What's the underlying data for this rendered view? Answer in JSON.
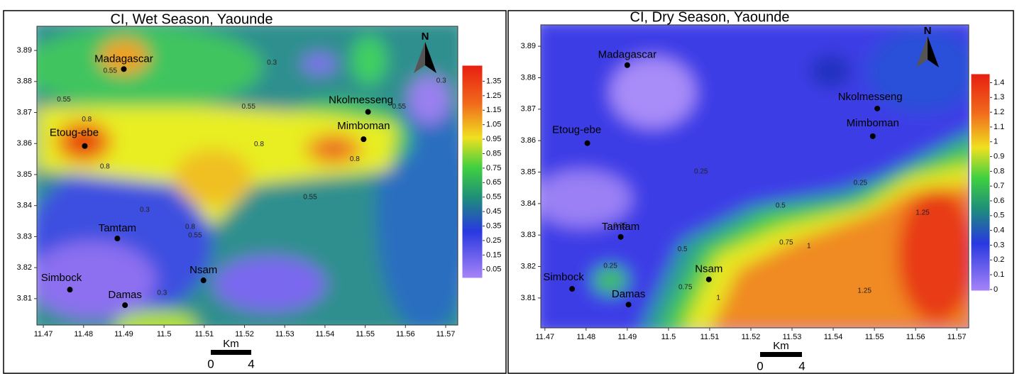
{
  "panels": [
    {
      "title": "CI, Wet Season, Yaounde",
      "xlim": [
        11.4684,
        11.573
      ],
      "ylim": [
        3.8015,
        3.8978
      ],
      "xticks": [
        11.47,
        11.48,
        11.49,
        11.5,
        11.51,
        11.52,
        11.53,
        11.54,
        11.55,
        11.56,
        11.57
      ],
      "yticks": [
        3.81,
        3.82,
        3.83,
        3.84,
        3.85,
        3.86,
        3.87,
        3.88,
        3.89
      ],
      "north": "N",
      "colorbar_lim": [
        -0.01,
        1.46
      ],
      "colorbar_ticks": [
        1.35,
        1.25,
        1.15,
        1.05,
        0.95,
        0.85,
        0.75,
        0.65,
        0.55,
        0.45,
        0.35,
        0.25,
        0.15,
        0.05
      ],
      "stations": [
        {
          "name": "Madagascar",
          "lon": 11.49,
          "lat": 3.884
        },
        {
          "name": "Nkolmesseng",
          "lon": 11.5507,
          "lat": 3.8702
        },
        {
          "name": "Mimboman",
          "lon": 11.5496,
          "lat": 3.8614
        },
        {
          "name": "Etoug-ebe",
          "lon": 11.4803,
          "lat": 3.8592
        },
        {
          "name": "Tamtam",
          "lon": 11.4884,
          "lat": 3.8294
        },
        {
          "name": "Nsam",
          "lon": 11.5098,
          "lat": 3.8159
        },
        {
          "name": "Simbock",
          "lon": 11.4766,
          "lat": 3.8129
        },
        {
          "name": "Damas",
          "lon": 11.4903,
          "lat": 3.8079
        }
      ],
      "contour_labels": [
        {
          "value": 0.55,
          "lon": 11.4866,
          "lat": 3.8834
        },
        {
          "value": 0.55,
          "lon": 11.4751,
          "lat": 3.8742
        },
        {
          "value": 0.55,
          "lon": 11.521,
          "lat": 3.8719
        },
        {
          "value": 0.8,
          "lon": 11.4808,
          "lat": 3.8678
        },
        {
          "value": 0.8,
          "lon": 11.5236,
          "lat": 3.8598
        },
        {
          "value": 0.8,
          "lon": 11.4853,
          "lat": 3.8525
        },
        {
          "value": 0.8,
          "lon": 11.5474,
          "lat": 3.855
        },
        {
          "value": 0.3,
          "lon": 11.5268,
          "lat": 3.8861
        },
        {
          "value": 0.3,
          "lon": 11.5689,
          "lat": 3.8802
        },
        {
          "value": 0.55,
          "lon": 11.5584,
          "lat": 3.8719
        },
        {
          "value": 0.55,
          "lon": 11.5363,
          "lat": 3.8427
        },
        {
          "value": 0.3,
          "lon": 11.4952,
          "lat": 3.8386
        },
        {
          "value": 0.8,
          "lon": 11.5065,
          "lat": 3.8331
        },
        {
          "value": 0.55,
          "lon": 11.5077,
          "lat": 3.8303
        },
        {
          "value": 0.3,
          "lon": 11.4995,
          "lat": 3.8118
        }
      ],
      "scale": {
        "unit": "Km",
        "ticks": [
          0,
          4
        ]
      }
    },
    {
      "title": "CI, Dry Season, Yaounde",
      "xlim": [
        11.469,
        11.5729
      ],
      "ylim": [
        3.8005,
        3.8968
      ],
      "xticks": [
        11.47,
        11.48,
        11.49,
        11.5,
        11.51,
        11.52,
        11.53,
        11.54,
        11.55,
        11.56,
        11.57
      ],
      "yticks": [
        3.81,
        3.82,
        3.83,
        3.84,
        3.85,
        3.86,
        3.87,
        3.88,
        3.89
      ],
      "north": "N",
      "colorbar_lim": [
        -0.01,
        1.46
      ],
      "colorbar_ticks": [
        1.4,
        1.3,
        1.2,
        1.1,
        1,
        0.9,
        0.8,
        0.7,
        0.6,
        0.5,
        0.4,
        0.3,
        0.2,
        0.1,
        0
      ],
      "stations": [
        {
          "name": "Madagascar",
          "lon": 11.49,
          "lat": 3.884
        },
        {
          "name": "Nkolmesseng",
          "lon": 11.5507,
          "lat": 3.8702
        },
        {
          "name": "Mimboman",
          "lon": 11.5496,
          "lat": 3.8614
        },
        {
          "name": "Etoug-ebe",
          "lon": 11.4803,
          "lat": 3.8592
        },
        {
          "name": "Tamtam",
          "lon": 11.4884,
          "lat": 3.8294
        },
        {
          "name": "Nsam",
          "lon": 11.5098,
          "lat": 3.8159
        },
        {
          "name": "Simbock",
          "lon": 11.4766,
          "lat": 3.8129
        },
        {
          "name": "Damas",
          "lon": 11.4903,
          "lat": 3.8079
        }
      ],
      "contour_labels": [
        {
          "value": 0.25,
          "lon": 11.5079,
          "lat": 3.8501
        },
        {
          "value": 0.25,
          "lon": 11.4859,
          "lat": 3.8202
        },
        {
          "value": 0.25,
          "lon": 11.4883,
          "lat": 3.833
        },
        {
          "value": 0.5,
          "lon": 11.5272,
          "lat": 3.8393
        },
        {
          "value": 0.75,
          "lon": 11.5286,
          "lat": 3.8276
        },
        {
          "value": 1,
          "lon": 11.5341,
          "lat": 3.8265
        },
        {
          "value": 0.5,
          "lon": 11.5034,
          "lat": 3.8254
        },
        {
          "value": 0.75,
          "lon": 11.5041,
          "lat": 3.8134
        },
        {
          "value": 1,
          "lon": 11.5121,
          "lat": 3.81
        },
        {
          "value": 0.25,
          "lon": 11.5466,
          "lat": 3.8465
        },
        {
          "value": 1.25,
          "lon": 11.5617,
          "lat": 3.8371
        },
        {
          "value": 1.25,
          "lon": 11.5476,
          "lat": 3.8123
        }
      ],
      "scale": {
        "unit": "Km",
        "ticks": [
          0,
          4
        ]
      }
    }
  ]
}
